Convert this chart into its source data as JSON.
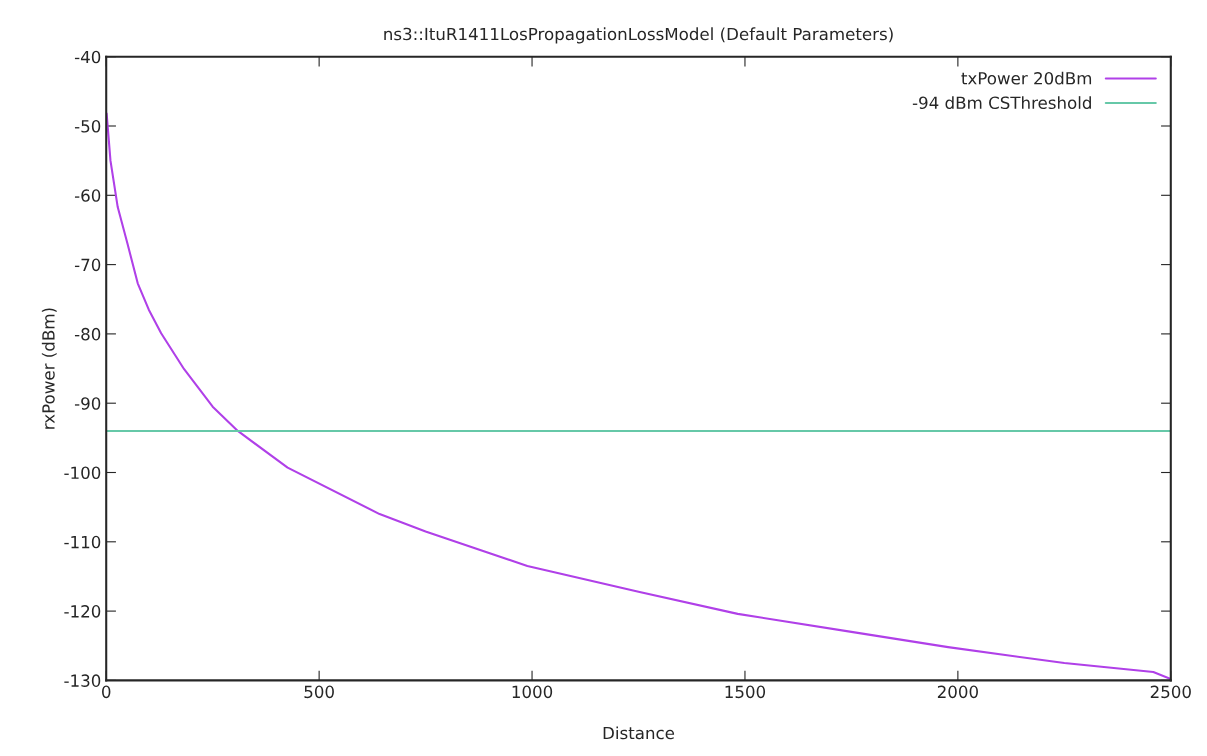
{
  "chart_data": {
    "type": "line",
    "title": "ns3::ItuR1411LosPropagationLossModel (Default Parameters)",
    "xlabel": "Distance",
    "ylabel": "rxPower (dBm)",
    "xlim": [
      0,
      2500
    ],
    "xticks": [
      0,
      500,
      1000,
      1500,
      2000,
      2500
    ],
    "ylim": [
      -130,
      -40
    ],
    "yticks": [
      -130,
      -120,
      -110,
      -100,
      -90,
      -80,
      -70,
      -60,
      -50,
      -40
    ],
    "grid": false,
    "legend": "top right",
    "line_style": "solid",
    "marker": "none",
    "series": [
      {
        "name": "txPower 20dBm",
        "color": "#b040e8",
        "x": [
          1,
          10,
          27,
          50,
          74,
          100,
          129,
          183,
          250,
          309,
          426,
          642,
          750,
          989,
          1250,
          1483,
          1750,
          1977,
          2250,
          2459,
          2500
        ],
        "values": [
          -48.2,
          -55,
          -61.7,
          -67,
          -72.7,
          -76.5,
          -79.9,
          -85.1,
          -90.5,
          -94.0,
          -99.3,
          -106.0,
          -108.5,
          -113.5,
          -117.2,
          -120.4,
          -123,
          -125.2,
          -127.5,
          -128.8,
          -129.8
        ]
      },
      {
        "name": "-94 dBm CSThreshold",
        "color": "#66c8a8",
        "x": [
          0,
          2500
        ],
        "values": [
          -94,
          -94
        ]
      }
    ]
  }
}
